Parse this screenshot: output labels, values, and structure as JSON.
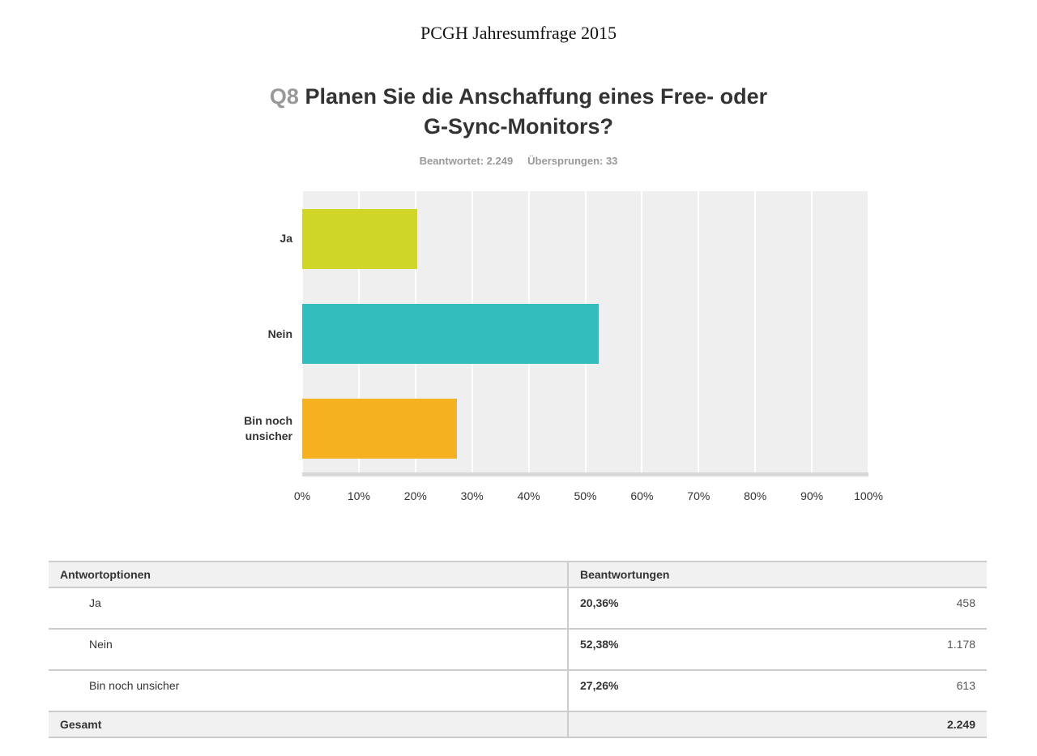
{
  "header": {
    "title": "PCGH Jahresumfrage 2015"
  },
  "chart_data": {
    "type": "bar",
    "orientation": "horizontal",
    "question_number": "Q8",
    "title": "Planen Sie die Anschaffung eines Free- oder G-Sync-Monitors?",
    "answered": "Beantwortet: 2.249",
    "skipped": "Übersprungen: 33",
    "categories": [
      "Ja",
      "Nein",
      "Bin noch unsicher"
    ],
    "values": [
      20.36,
      52.38,
      27.26
    ],
    "colors": [
      "#cfd628",
      "#33bdbd",
      "#f5b120"
    ],
    "xlim": [
      0,
      100
    ],
    "xticks": [
      {
        "value": 0,
        "label": "0%"
      },
      {
        "value": 10,
        "label": "10%"
      },
      {
        "value": 20,
        "label": "20%"
      },
      {
        "value": 30,
        "label": "30%"
      },
      {
        "value": 40,
        "label": "40%"
      },
      {
        "value": 50,
        "label": "50%"
      },
      {
        "value": 60,
        "label": "60%"
      },
      {
        "value": 70,
        "label": "70%"
      },
      {
        "value": 80,
        "label": "80%"
      },
      {
        "value": 90,
        "label": "90%"
      },
      {
        "value": 100,
        "label": "100%"
      }
    ],
    "grid": true
  },
  "table": {
    "header": [
      "Antwortoptionen",
      "Beantwortungen"
    ],
    "rows": [
      [
        "Ja",
        "20,36%",
        "458"
      ],
      [
        "Nein",
        "52,38%",
        "1.178"
      ],
      [
        "Bin noch unsicher",
        "27,26%",
        "613"
      ]
    ],
    "total": [
      "Gesamt",
      "2.249"
    ]
  }
}
